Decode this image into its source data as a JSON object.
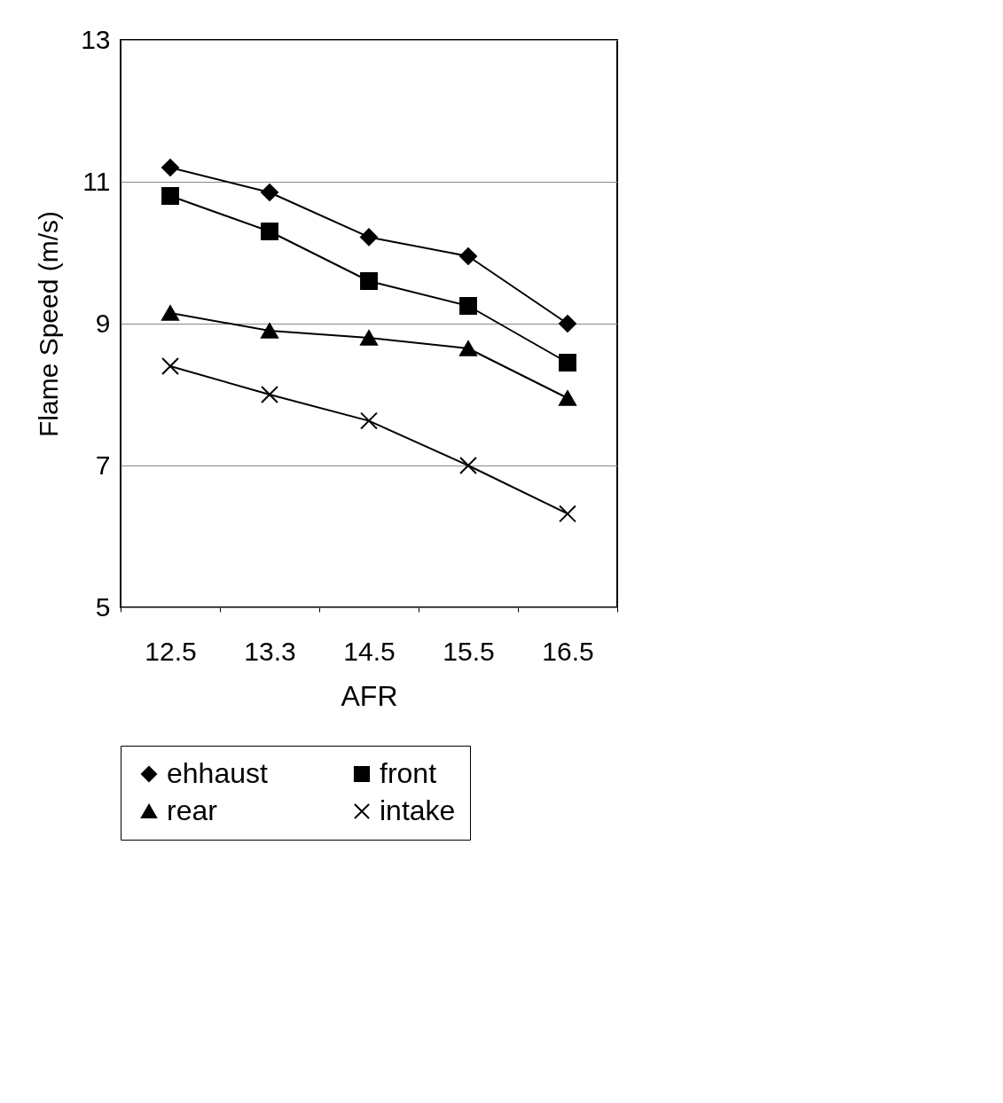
{
  "chart_data": {
    "type": "line",
    "xlabel": "AFR",
    "ylabel": "Flame Speed (m/s)",
    "categories": [
      "12.5",
      "13.3",
      "14.5",
      "15.5",
      "16.5"
    ],
    "series": [
      {
        "name": "ehhaust",
        "color": "#000000",
        "marker": "diamond",
        "values": [
          11.2,
          10.85,
          10.22,
          9.95,
          9.0
        ]
      },
      {
        "name": "front",
        "color": "#000000",
        "marker": "square",
        "values": [
          10.8,
          10.3,
          9.6,
          9.25,
          8.45
        ]
      },
      {
        "name": "rear",
        "color": "#000000",
        "marker": "triangle",
        "values": [
          9.15,
          8.9,
          8.8,
          8.65,
          7.95
        ]
      },
      {
        "name": "intake",
        "color": "#000000",
        "marker": "cross",
        "values": [
          8.4,
          8.0,
          7.63,
          7.0,
          6.32
        ]
      }
    ],
    "ylim": [
      5,
      13
    ],
    "yticks": [
      5,
      7,
      9,
      11,
      13
    ],
    "grid": "y",
    "legend": "bottom",
    "line_style": "solid"
  }
}
